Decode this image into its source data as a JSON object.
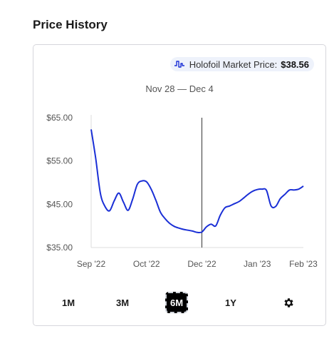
{
  "header": {
    "title": "Price History"
  },
  "market": {
    "label": "Holofoil Market Price:",
    "value": "$38.56",
    "icon": "price-chart-icon"
  },
  "date_range": "Nov 28 — Dec 4",
  "range_buttons": [
    {
      "label": "1M",
      "active": false
    },
    {
      "label": "3M",
      "active": false
    },
    {
      "label": "6M",
      "active": true
    },
    {
      "label": "1Y",
      "active": false
    }
  ],
  "settings_icon": "gear-icon",
  "chart_data": {
    "type": "line",
    "title": "",
    "xlabel": "",
    "ylabel": "",
    "x_ticks": [
      "Sep '22",
      "Oct '22",
      "Dec '22",
      "Jan '23",
      "Feb '23"
    ],
    "y_ticks": [
      "$65.00",
      "$55.00",
      "$45.00",
      "$35.00"
    ],
    "y_tick_values": [
      65,
      55,
      45,
      35
    ],
    "ylim": [
      35,
      65
    ],
    "x_domain": [
      0,
      23
    ],
    "x_tick_positions": [
      0,
      6,
      12,
      18,
      23
    ],
    "grid": false,
    "line_color": "#1a2fd6",
    "crosshair_x": 12,
    "series": [
      {
        "x": [
          0,
          0.5,
          1,
          1.5,
          2,
          2.5,
          3,
          3.5,
          4,
          4.5,
          5,
          5.5,
          6,
          6.5,
          7,
          7.5,
          8,
          8.5,
          9,
          9.5,
          10,
          10.5,
          11,
          11.5,
          12,
          12.5,
          13,
          13.5,
          14,
          14.5,
          15,
          15.5,
          16,
          16.5,
          17,
          17.5,
          18,
          18.5,
          19,
          19.5,
          20,
          20.5,
          21,
          21.5,
          22,
          22.5,
          23
        ],
        "values": [
          62.3,
          55.5,
          47.5,
          44.5,
          43.5,
          45.8,
          47.6,
          45.5,
          43.6,
          46.2,
          49.6,
          50.4,
          50.2,
          48.5,
          46.0,
          43.2,
          41.7,
          40.6,
          39.9,
          39.5,
          39.2,
          39.0,
          38.8,
          38.5,
          38.6,
          39.8,
          40.4,
          40.0,
          42.5,
          44.2,
          44.6,
          45.1,
          45.6,
          46.4,
          47.3,
          48.0,
          48.4,
          48.5,
          48.2,
          44.6,
          44.5,
          46.3,
          47.3,
          48.3,
          48.3,
          48.5,
          49.2
        ]
      }
    ]
  }
}
